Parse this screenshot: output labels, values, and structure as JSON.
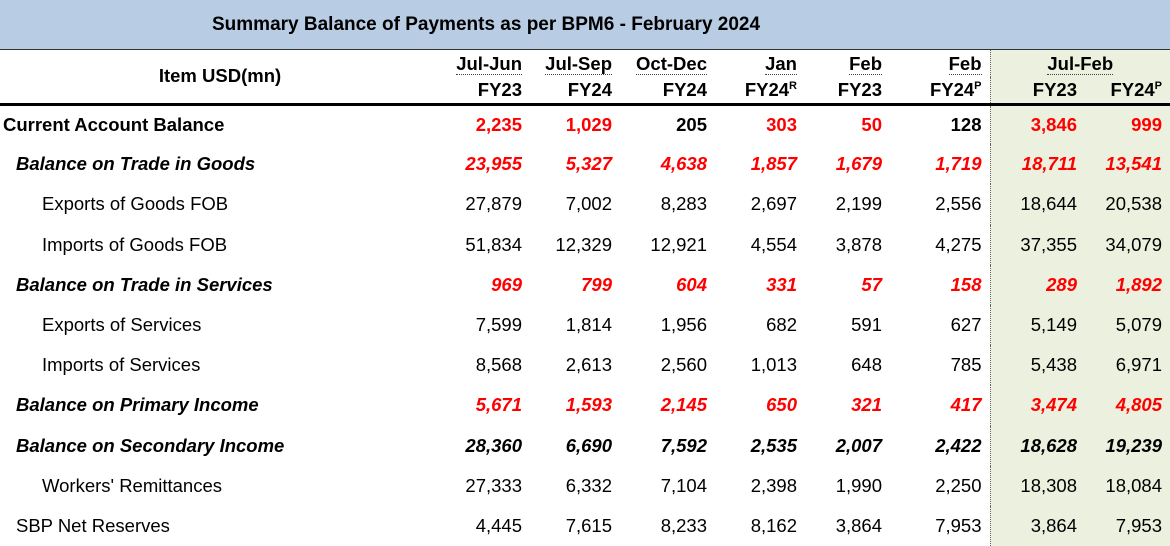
{
  "header": {
    "title": "Summary Balance of Payments as per BPM6 - February 2024"
  },
  "table": {
    "item_header": "Item USD(mn)",
    "period_headers": [
      {
        "text": "Jul-Jun",
        "span": 1
      },
      {
        "text": "Jul-Sep",
        "span": 1
      },
      {
        "text": "Oct-Dec",
        "span": 1
      },
      {
        "text": "Jan",
        "span": 1
      },
      {
        "text": "Feb",
        "span": 1
      },
      {
        "text": "Feb",
        "span": 1
      },
      {
        "text": "Jul-Feb",
        "span": 2
      }
    ],
    "year_headers": [
      {
        "text": "FY23"
      },
      {
        "text": "FY24"
      },
      {
        "text": "FY24"
      },
      {
        "text": "FY24",
        "sup": "R"
      },
      {
        "text": "FY23"
      },
      {
        "text": "FY24",
        "sup": "P"
      },
      {
        "text": "FY23"
      },
      {
        "text": "FY24",
        "sup": "P"
      }
    ],
    "highlight_color": "#ebf1de",
    "rows": [
      {
        "label": "Current Account Balance",
        "style": "bold",
        "values": [
          "2,235",
          "1,029",
          "205",
          "303",
          "50",
          "128",
          "3,846",
          "999"
        ],
        "colors": [
          "red",
          "red",
          "black",
          "red",
          "red",
          "black",
          "red",
          "red"
        ]
      },
      {
        "label": "Balance on Trade in Goods",
        "style": "bold-italic",
        "values": [
          "23,955",
          "5,327",
          "4,638",
          "1,857",
          "1,679",
          "1,719",
          "18,711",
          "13,541"
        ],
        "colors": [
          "red",
          "red",
          "red",
          "red",
          "red",
          "red",
          "red",
          "red"
        ]
      },
      {
        "label": "Exports of Goods FOB",
        "style": "sub",
        "values": [
          "27,879",
          "7,002",
          "8,283",
          "2,697",
          "2,199",
          "2,556",
          "18,644",
          "20,538"
        ],
        "colors": [
          "black",
          "black",
          "black",
          "black",
          "black",
          "black",
          "black",
          "black"
        ]
      },
      {
        "label": "Imports of Goods FOB",
        "style": "sub",
        "values": [
          "51,834",
          "12,329",
          "12,921",
          "4,554",
          "3,878",
          "4,275",
          "37,355",
          "34,079"
        ],
        "colors": [
          "black",
          "black",
          "black",
          "black",
          "black",
          "black",
          "black",
          "black"
        ]
      },
      {
        "label": "Balance on Trade in Services",
        "style": "bold-italic",
        "values": [
          "969",
          "799",
          "604",
          "331",
          "57",
          "158",
          "289",
          "1,892"
        ],
        "colors": [
          "red",
          "red",
          "red",
          "red",
          "red",
          "red",
          "red",
          "red"
        ]
      },
      {
        "label": "Exports of Services",
        "style": "sub",
        "values": [
          "7,599",
          "1,814",
          "1,956",
          "682",
          "591",
          "627",
          "5,149",
          "5,079"
        ],
        "colors": [
          "black",
          "black",
          "black",
          "black",
          "black",
          "black",
          "black",
          "black"
        ]
      },
      {
        "label": "Imports of Services",
        "style": "sub",
        "values": [
          "8,568",
          "2,613",
          "2,560",
          "1,013",
          "648",
          "785",
          "5,438",
          "6,971"
        ],
        "colors": [
          "black",
          "black",
          "black",
          "black",
          "black",
          "black",
          "black",
          "black"
        ]
      },
      {
        "label": "Balance on Primary Income",
        "style": "bold-italic",
        "values": [
          "5,671",
          "1,593",
          "2,145",
          "650",
          "321",
          "417",
          "3,474",
          "4,805"
        ],
        "colors": [
          "red",
          "red",
          "red",
          "red",
          "red",
          "red",
          "red",
          "red"
        ]
      },
      {
        "label": "Balance on Secondary Income",
        "style": "bold-italic",
        "values": [
          "28,360",
          "6,690",
          "7,592",
          "2,535",
          "2,007",
          "2,422",
          "18,628",
          "19,239"
        ],
        "colors": [
          "black",
          "black",
          "black",
          "black",
          "black",
          "black",
          "black",
          "black"
        ]
      },
      {
        "label": "Workers' Remittances",
        "style": "sub",
        "values": [
          "27,333",
          "6,332",
          "7,104",
          "2,398",
          "1,990",
          "2,250",
          "18,308",
          "18,084"
        ],
        "colors": [
          "black",
          "black",
          "black",
          "black",
          "black",
          "black",
          "black",
          "black"
        ]
      },
      {
        "label": "SBP Net Reserves",
        "style": "plain",
        "values": [
          "4,445",
          "7,615",
          "8,233",
          "8,162",
          "3,864",
          "7,953",
          "3,864",
          "7,953"
        ],
        "colors": [
          "black",
          "black",
          "black",
          "black",
          "black",
          "black",
          "black",
          "black"
        ]
      }
    ]
  }
}
